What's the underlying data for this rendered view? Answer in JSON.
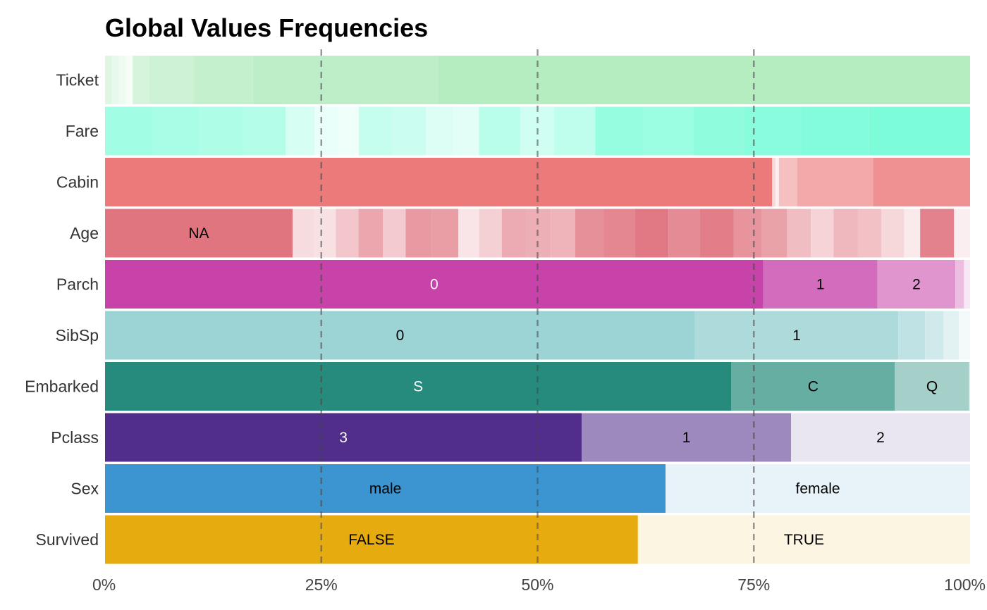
{
  "chart_data": {
    "type": "bar",
    "orientation": "horizontal",
    "stacked": "percent",
    "title": "Global Values Frequencies",
    "xlabel": "",
    "ylabel": "",
    "xlim": [
      0,
      100
    ],
    "x_ticks": [
      0,
      25,
      50,
      75,
      100
    ],
    "x_tick_labels": [
      "0%",
      "25%",
      "50%",
      "75%",
      "100%"
    ],
    "reference_lines": [
      25,
      50,
      75
    ],
    "grid": false,
    "legend": "none",
    "categories": [
      "Ticket",
      "Fare",
      "Cabin",
      "Age",
      "Parch",
      "SibSp",
      "Embarked",
      "Pclass",
      "Sex",
      "Survived"
    ],
    "rows": [
      {
        "name": "Ticket",
        "color": "#b5ecc0",
        "segments": [
          {
            "label": "",
            "value": 0.8
          },
          {
            "label": "",
            "value": 0.8
          },
          {
            "label": "",
            "value": 0.8
          },
          {
            "label": "",
            "value": 0.8
          },
          {
            "label": "",
            "value": 1.9
          },
          {
            "label": "",
            "value": 5.1
          },
          {
            "label": "",
            "value": 6.9
          },
          {
            "label": "",
            "value": 21.4
          },
          {
            "label": "",
            "value": 61.5
          }
        ]
      },
      {
        "name": "Fare",
        "color": "#7dfcd9",
        "segments": [
          {
            "label": "",
            "value": 5.0
          },
          {
            "label": "",
            "value": 4.8
          },
          {
            "label": "",
            "value": 4.6
          },
          {
            "label": "",
            "value": 4.4
          },
          {
            "label": "",
            "value": 3.0
          },
          {
            "label": "",
            "value": 2.4
          },
          {
            "label": "",
            "value": 2.2
          },
          {
            "label": "",
            "value": 3.5
          },
          {
            "label": "",
            "value": 3.5
          },
          {
            "label": "",
            "value": 2.8
          },
          {
            "label": "",
            "value": 2.7
          },
          {
            "label": "",
            "value": 4.3
          },
          {
            "label": "",
            "value": 3.5
          },
          {
            "label": "",
            "value": 4.3
          },
          {
            "label": "",
            "value": 5.1
          },
          {
            "label": "",
            "value": 5.1
          },
          {
            "label": "",
            "value": 5.2
          },
          {
            "label": "",
            "value": 6.0
          },
          {
            "label": "",
            "value": 7.1
          },
          {
            "label": "",
            "value": 10.5
          }
        ]
      },
      {
        "name": "Cabin",
        "color": "#ec7a7b",
        "segments": [
          {
            "label": "",
            "value": 77.1
          },
          {
            "label": "",
            "value": 0.4
          },
          {
            "label": "",
            "value": 0.4
          },
          {
            "label": "",
            "value": 2.1
          },
          {
            "label": "",
            "value": 8.8
          },
          {
            "label": "",
            "value": 11.2
          }
        ]
      },
      {
        "name": "Age",
        "color": "#e07580",
        "segments": [
          {
            "label": "NA",
            "value": 19.9
          },
          {
            "label": "",
            "value": 2.3
          },
          {
            "label": "",
            "value": 2.3
          },
          {
            "label": "",
            "value": 2.4
          },
          {
            "label": "",
            "value": 2.6
          },
          {
            "label": "",
            "value": 2.4
          },
          {
            "label": "",
            "value": 2.8
          },
          {
            "label": "",
            "value": 2.8
          },
          {
            "label": "",
            "value": 2.2
          },
          {
            "label": "",
            "value": 2.4
          },
          {
            "label": "",
            "value": 2.6
          },
          {
            "label": "",
            "value": 2.6
          },
          {
            "label": "",
            "value": 2.6
          },
          {
            "label": "",
            "value": 3.0
          },
          {
            "label": "",
            "value": 3.3
          },
          {
            "label": "",
            "value": 3.6
          },
          {
            "label": "",
            "value": 3.3
          },
          {
            "label": "",
            "value": 3.6
          },
          {
            "label": "",
            "value": 3.0
          },
          {
            "label": "",
            "value": 2.7
          },
          {
            "label": "",
            "value": 2.5
          },
          {
            "label": "",
            "value": 2.4
          },
          {
            "label": "",
            "value": 2.6
          },
          {
            "label": "",
            "value": 2.5
          },
          {
            "label": "",
            "value": 2.4
          },
          {
            "label": "",
            "value": 1.7
          },
          {
            "label": "",
            "value": 3.6
          },
          {
            "label": "",
            "value": 1.7
          }
        ]
      },
      {
        "name": "Parch",
        "color": "#c742a9",
        "segments": [
          {
            "label": "0",
            "value": 76.1
          },
          {
            "label": "1",
            "value": 13.2
          },
          {
            "label": "2",
            "value": 9.0
          },
          {
            "label": "",
            "value": 1.0
          },
          {
            "label": "",
            "value": 0.7
          }
        ]
      },
      {
        "name": "SibSp",
        "color": "#9cd3d5",
        "segments": [
          {
            "label": "0",
            "value": 68.2
          },
          {
            "label": "1",
            "value": 23.5
          },
          {
            "label": "",
            "value": 3.1
          },
          {
            "label": "",
            "value": 2.1
          },
          {
            "label": "",
            "value": 1.8
          },
          {
            "label": "",
            "value": 1.3
          }
        ]
      },
      {
        "name": "Embarked",
        "color": "#268b7c",
        "segments": [
          {
            "label": "S",
            "value": 72.4
          },
          {
            "label": "C",
            "value": 18.9
          },
          {
            "label": "Q",
            "value": 8.6
          },
          {
            "label": "",
            "value": 0.1
          }
        ]
      },
      {
        "name": "Pclass",
        "color": "#512d8c",
        "segments": [
          {
            "label": "3",
            "value": 55.1
          },
          {
            "label": "1",
            "value": 24.2
          },
          {
            "label": "2",
            "value": 20.7
          }
        ]
      },
      {
        "name": "Sex",
        "color": "#3c95d1",
        "segments": [
          {
            "label": "male",
            "value": 64.8
          },
          {
            "label": "female",
            "value": 35.2
          }
        ]
      },
      {
        "name": "Survived",
        "color": "#e6ab0f",
        "segments": [
          {
            "label": "FALSE",
            "value": 61.6
          },
          {
            "label": "TRUE",
            "value": 38.4
          }
        ]
      }
    ]
  }
}
